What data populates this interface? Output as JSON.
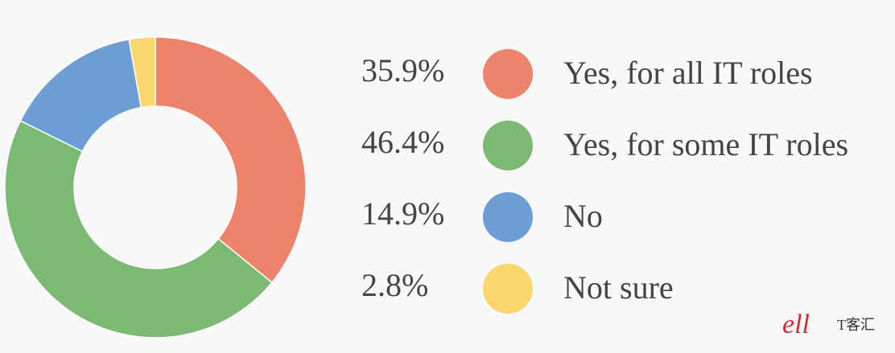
{
  "chart_data": {
    "type": "donut",
    "categories": [
      "Yes, for all IT roles",
      "Yes, for some IT roles",
      "No",
      "Not sure"
    ],
    "values": [
      35.9,
      46.4,
      14.9,
      2.8
    ],
    "value_labels": [
      "35.9%",
      "46.4%",
      "14.9%",
      "2.8%"
    ],
    "colors": [
      "#ec836a",
      "#7bb974",
      "#6c9ed4",
      "#f9d66e"
    ],
    "watermark": "T客汇"
  }
}
